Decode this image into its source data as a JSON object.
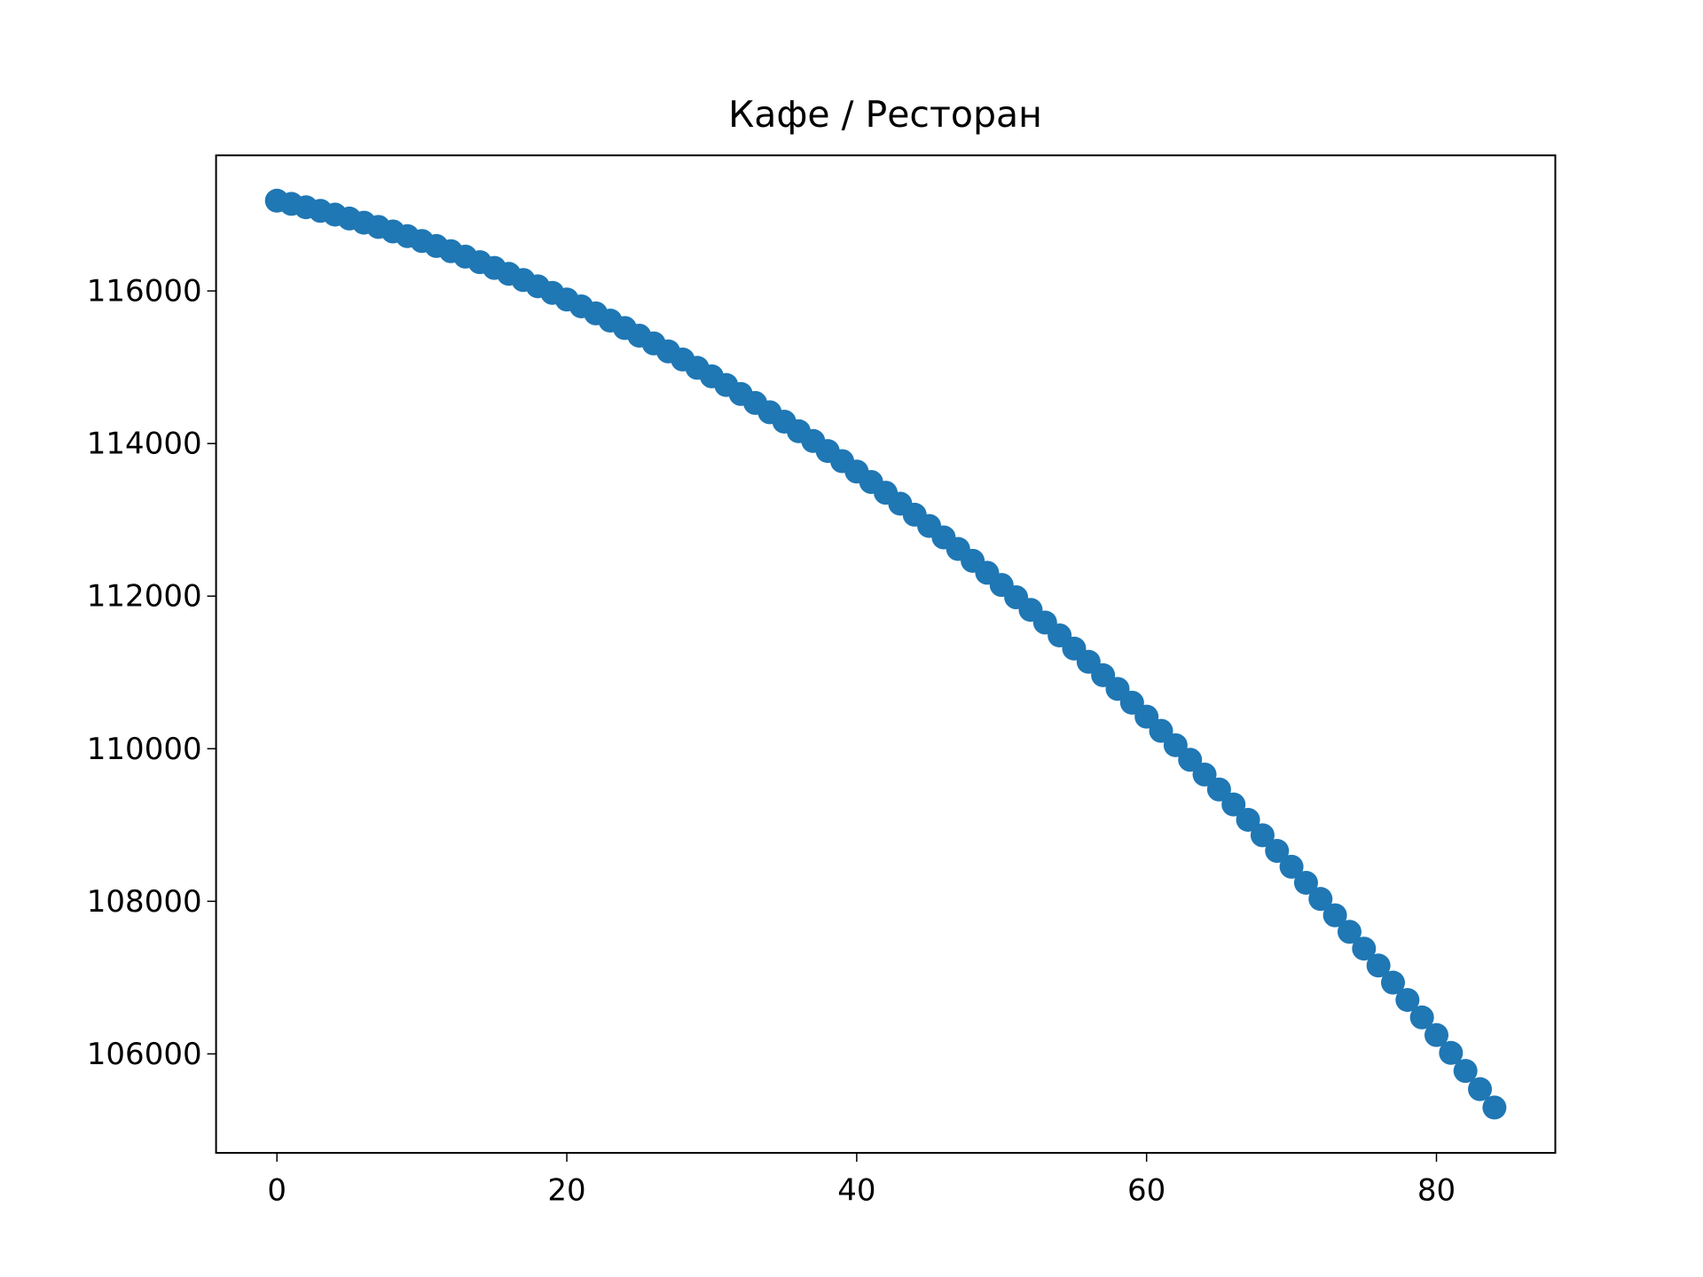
{
  "chart_data": {
    "type": "scatter",
    "title": "Кафе / Ресторан",
    "color": "#1f77b4",
    "x": [
      0,
      1,
      2,
      3,
      4,
      5,
      6,
      7,
      8,
      9,
      10,
      11,
      12,
      13,
      14,
      15,
      16,
      17,
      18,
      19,
      20,
      21,
      22,
      23,
      24,
      25,
      26,
      27,
      28,
      29,
      30,
      31,
      32,
      33,
      34,
      35,
      36,
      37,
      38,
      39,
      40,
      41,
      42,
      43,
      44,
      45,
      46,
      47,
      48,
      49,
      50,
      51,
      52,
      53,
      54,
      55,
      56,
      57,
      58,
      59,
      60,
      61,
      62,
      63,
      64,
      65,
      66,
      67,
      68,
      69,
      70,
      71,
      72,
      73,
      74,
      75,
      76,
      77,
      78,
      79,
      80,
      81,
      82,
      83,
      84
    ],
    "values": [
      117183,
      117141,
      117097,
      117050,
      117001,
      116949,
      116895,
      116839,
      116780,
      116719,
      116655,
      116589,
      116521,
      116450,
      116377,
      116302,
      116224,
      116143,
      116061,
      115975,
      115888,
      115798,
      115706,
      115611,
      115514,
      115414,
      115312,
      115208,
      115101,
      114992,
      114881,
      114767,
      114650,
      114532,
      114410,
      114287,
      114161,
      114033,
      113902,
      113769,
      113633,
      113496,
      113355,
      113212,
      113067,
      112920,
      112770,
      112618,
      112463,
      112306,
      112146,
      111985,
      111820,
      111654,
      111485,
      111313,
      111139,
      110963,
      110784,
      110603,
      110420,
      110234,
      110046,
      109855,
      109662,
      109466,
      109269,
      109068,
      108866,
      108661,
      108453,
      108243,
      108031,
      107817,
      107600,
      107380,
      107158,
      106934,
      106707,
      106478,
      106247,
      106013,
      105777,
      105538,
      105297
    ],
    "xlim": [
      -4.2,
      88.2
    ],
    "xticks": [
      0,
      20,
      40,
      60,
      80
    ],
    "ylim": [
      104703,
      117777
    ],
    "yticks": [
      106000,
      108000,
      110000,
      112000,
      114000,
      116000
    ],
    "grid": false
  }
}
